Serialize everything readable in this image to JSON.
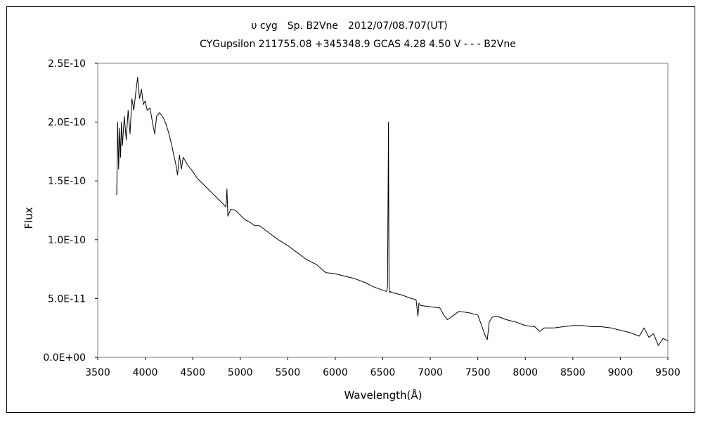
{
  "chart_data": {
    "type": "line",
    "title": "υ cyg　Sp. B2Vne　2012/07/08.707(UT)",
    "subtitle": "CYGupsilon 211755.08 +345348.9 GCAS 4.28 4.50 V - - - B2Vne",
    "xlabel": "Wavelength(Å)",
    "ylabel": "Flux",
    "xlim": [
      3500,
      9500
    ],
    "ylim": [
      0,
      2.5e-10
    ],
    "x_ticks": [
      "3500",
      "4000",
      "4500",
      "5000",
      "5500",
      "6000",
      "6500",
      "7000",
      "7500",
      "8000",
      "8500",
      "9000",
      "9500"
    ],
    "y_ticks": [
      "0.0E+00",
      "5.0E-11",
      "1.0E-10",
      "1.5E-10",
      "2.0E-10",
      "2.5E-10"
    ],
    "grid": false,
    "legend": "none",
    "line_color": "#000000",
    "series": [
      {
        "x": [
          3700,
          3710,
          3720,
          3730,
          3740,
          3750,
          3760,
          3780,
          3800,
          3820,
          3840,
          3860,
          3880,
          3900,
          3920,
          3940,
          3960,
          3980,
          4000,
          4020,
          4050,
          4080,
          4100,
          4120,
          4150,
          4180,
          4200,
          4220,
          4250,
          4280,
          4300,
          4320,
          4340,
          4360,
          4380,
          4400,
          4450,
          4500,
          4550,
          4600,
          4650,
          4700,
          4750,
          4800,
          4850,
          4860,
          4870,
          4900,
          4950,
          5000,
          5050,
          5100,
          5150,
          5200,
          5250,
          5300,
          5400,
          5500,
          5600,
          5700,
          5800,
          5900,
          6000,
          6100,
          6200,
          6300,
          6400,
          6500,
          6540,
          6550,
          6560,
          6563,
          6566,
          6570,
          6575,
          6580,
          6600,
          6700,
          6800,
          6850,
          6870,
          6880,
          6900,
          7000,
          7100,
          7150,
          7180,
          7200,
          7250,
          7300,
          7400,
          7500,
          7580,
          7600,
          7620,
          7650,
          7700,
          7800,
          7900,
          8000,
          8100,
          8150,
          8200,
          8300,
          8400,
          8500,
          8600,
          8700,
          8800,
          8900,
          9000,
          9100,
          9200,
          9250,
          9300,
          9350,
          9400,
          9450,
          9500
        ],
        "y": [
          1.38e-10,
          2e-10,
          1.6e-10,
          1.95e-10,
          1.7e-10,
          2e-10,
          1.8e-10,
          2.05e-10,
          1.85e-10,
          2.1e-10,
          1.9e-10,
          2.2e-10,
          2.1e-10,
          2.25e-10,
          2.38e-10,
          2.2e-10,
          2.28e-10,
          2.15e-10,
          2.18e-10,
          2.1e-10,
          2.12e-10,
          1.98e-10,
          1.9e-10,
          2.05e-10,
          2.08e-10,
          2.05e-10,
          2.02e-10,
          1.98e-10,
          1.9e-10,
          1.8e-10,
          1.72e-10,
          1.65e-10,
          1.55e-10,
          1.72e-10,
          1.6e-10,
          1.7e-10,
          1.63e-10,
          1.58e-10,
          1.52e-10,
          1.48e-10,
          1.44e-10,
          1.4e-10,
          1.36e-10,
          1.32e-10,
          1.28e-10,
          1.43e-10,
          1.2e-10,
          1.26e-10,
          1.25e-10,
          1.21e-10,
          1.17e-10,
          1.15e-10,
          1.12e-10,
          1.12e-10,
          1.09e-10,
          1.06e-10,
          1e-10,
          9.5e-11,
          8.9e-11,
          8.3e-11,
          7.9e-11,
          7.2e-11,
          7.1e-11,
          6.9e-11,
          6.7e-11,
          6.4e-11,
          6e-11,
          5.7e-11,
          5.6e-11,
          6e-11,
          2e-10,
          1.15e-10,
          6e-11,
          5.7e-11,
          5.5e-11,
          5.6e-11,
          5.5e-11,
          5.3e-11,
          5e-11,
          4.9e-11,
          3.5e-11,
          4.6e-11,
          4.4e-11,
          4.3e-11,
          4.2e-11,
          3.5e-11,
          3.2e-11,
          3.3e-11,
          3.6e-11,
          3.9e-11,
          3.8e-11,
          3.6e-11,
          1.8e-11,
          1.5e-11,
          3e-11,
          3.4e-11,
          3.5e-11,
          3.2e-11,
          3e-11,
          2.7e-11,
          2.6e-11,
          2.2e-11,
          2.5e-11,
          2.5e-11,
          2.6e-11,
          2.7e-11,
          2.7e-11,
          2.6e-11,
          2.6e-11,
          2.5e-11,
          2.3e-11,
          2.1e-11,
          1.8e-11,
          2.5e-11,
          1.7e-11,
          2e-11,
          1e-11,
          1.6e-11,
          1.4e-11
        ]
      }
    ]
  }
}
